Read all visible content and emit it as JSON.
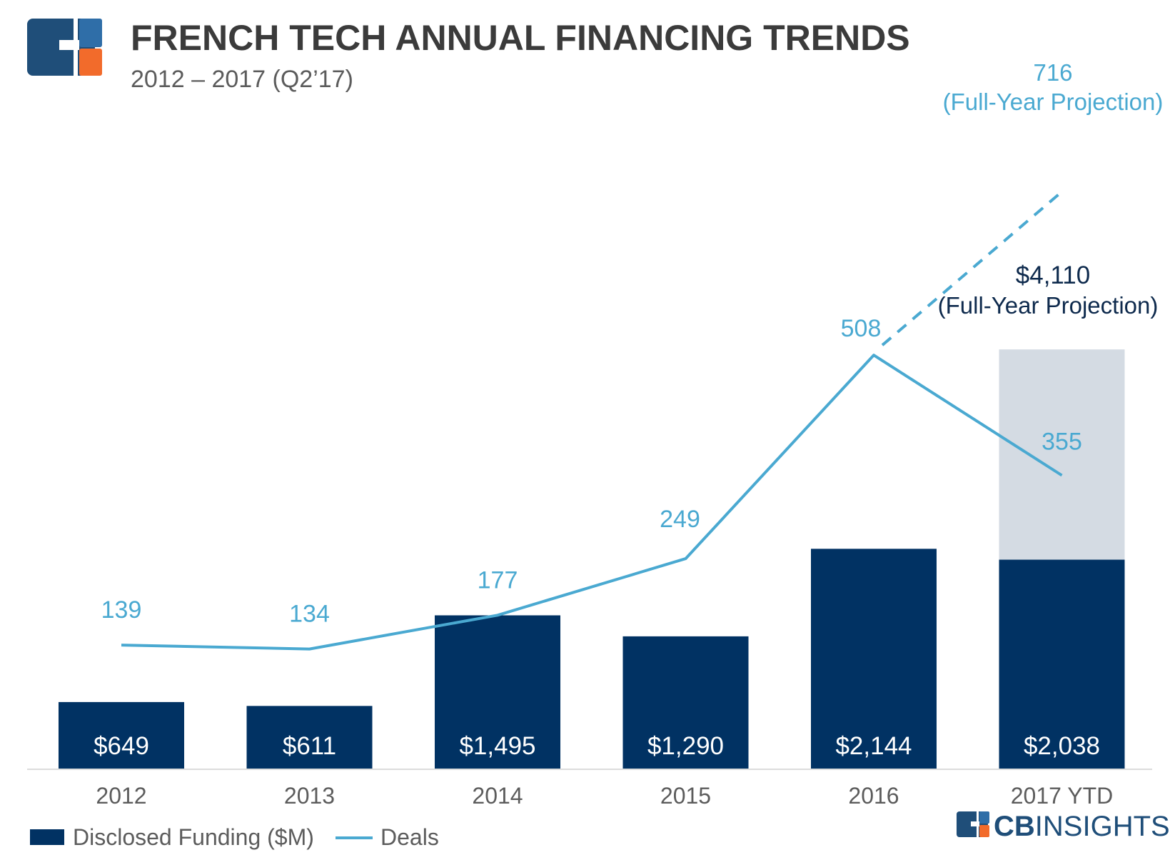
{
  "header": {
    "title": "FRENCH TECH ANNUAL FINANCING TRENDS",
    "subtitle": "2012 – 2017 (Q2’17)"
  },
  "colors": {
    "bar": "#013263",
    "line": "#4aa9d1",
    "projection_fill": "#d4dbe3",
    "title": "#3b3b3b",
    "axis_text": "#5c5c5c",
    "projection_label": "#0e2a4d",
    "logo_navy": "#1f4e79",
    "logo_blue": "#2f6ea8",
    "logo_orange": "#f26b2b"
  },
  "chart_data": {
    "type": "bar",
    "categories": [
      "2012",
      "2013",
      "2014",
      "2015",
      "2016",
      "2017 YTD"
    ],
    "series": [
      {
        "name": "Disclosed Funding ($M)",
        "type": "bar",
        "values": [
          649,
          611,
          1495,
          1290,
          2144,
          2038
        ],
        "labels": [
          "$649",
          "$611",
          "$1,495",
          "$1,290",
          "$2,144",
          "$2,038"
        ]
      },
      {
        "name": "Deals",
        "type": "line",
        "values": [
          139,
          134,
          177,
          249,
          508,
          355
        ],
        "labels": [
          "139",
          "134",
          "177",
          "249",
          "508",
          "355"
        ]
      }
    ],
    "projection": {
      "funding_value": 4110,
      "funding_label": "$4,110",
      "funding_note": "(Full-Year Projection)",
      "deals_value": 716,
      "deals_label": "716",
      "deals_note": "(Full-Year Projection)"
    },
    "legend": {
      "position": "bottom-left",
      "items": [
        "Disclosed Funding ($M)",
        "Deals"
      ]
    },
    "grid": false
  },
  "brand": {
    "logo_text": "CBINSIGHTS",
    "logo_bold_part": "CB",
    "logo_light_part": "INSIGHTS"
  }
}
